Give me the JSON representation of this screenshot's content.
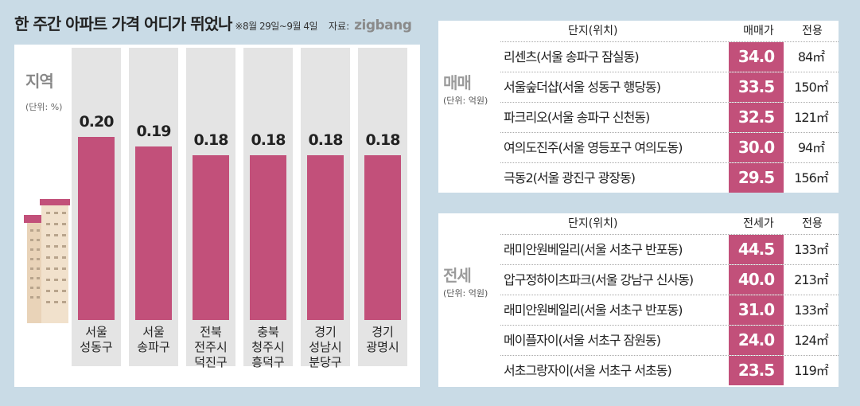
{
  "header": {
    "title": "한 주간 아파트 가격 어디가 뛰었나",
    "period": "※8월 29일~9월 4일",
    "source_label": "자료:",
    "source_brand": "zigbang"
  },
  "colors": {
    "bar": "#c2507a",
    "background": "#c9dbe6",
    "column_bg": "#e4e4e4"
  },
  "chart_data": {
    "type": "bar",
    "title": "지역",
    "unit": "(단위: %)",
    "categories": [
      "서울\n성동구",
      "서울\n송파구",
      "전북\n전주시\n덕진구",
      "충북\n청주시\n흥덕구",
      "경기\n성남시\n분당구",
      "경기\n광명시"
    ],
    "values": [
      0.2,
      0.19,
      0.18,
      0.18,
      0.18,
      0.18
    ],
    "value_labels": [
      "0.20",
      "0.19",
      "0.18",
      "0.18",
      "0.18",
      "0.18"
    ],
    "ylim": [
      0,
      0.3
    ]
  },
  "sale": {
    "label": "매매",
    "unit": "(단위: 억원)",
    "headers": {
      "name": "단지(위치)",
      "price": "매매가",
      "area": "전용"
    },
    "rows": [
      {
        "name": "리센츠(서울 송파구 잠실동)",
        "price": "34.0",
        "area": "84㎡"
      },
      {
        "name": "서울숲더샵(서울 성동구 행당동)",
        "price": "33.5",
        "area": "150㎡"
      },
      {
        "name": "파크리오(서울 송파구 신천동)",
        "price": "32.5",
        "area": "121㎡"
      },
      {
        "name": "여의도진주(서울 영등포구 여의도동)",
        "price": "30.0",
        "area": "94㎡"
      },
      {
        "name": "극동2(서울 광진구 광장동)",
        "price": "29.5",
        "area": "156㎡"
      }
    ]
  },
  "jeonse": {
    "label": "전세",
    "unit": "(단위: 억원)",
    "headers": {
      "name": "단지(위치)",
      "price": "전세가",
      "area": "전용"
    },
    "rows": [
      {
        "name": "래미안원베일리(서울 서초구 반포동)",
        "price": "44.5",
        "area": "133㎡"
      },
      {
        "name": "압구정하이츠파크(서울 강남구 신사동)",
        "price": "40.0",
        "area": "213㎡"
      },
      {
        "name": "래미안원베일리(서울 서초구 반포동)",
        "price": "31.0",
        "area": "133㎡"
      },
      {
        "name": "메이플자이(서울 서초구 잠원동)",
        "price": "24.0",
        "area": "124㎡"
      },
      {
        "name": "서초그랑자이(서울 서초구 서초동)",
        "price": "23.5",
        "area": "119㎡"
      }
    ]
  }
}
